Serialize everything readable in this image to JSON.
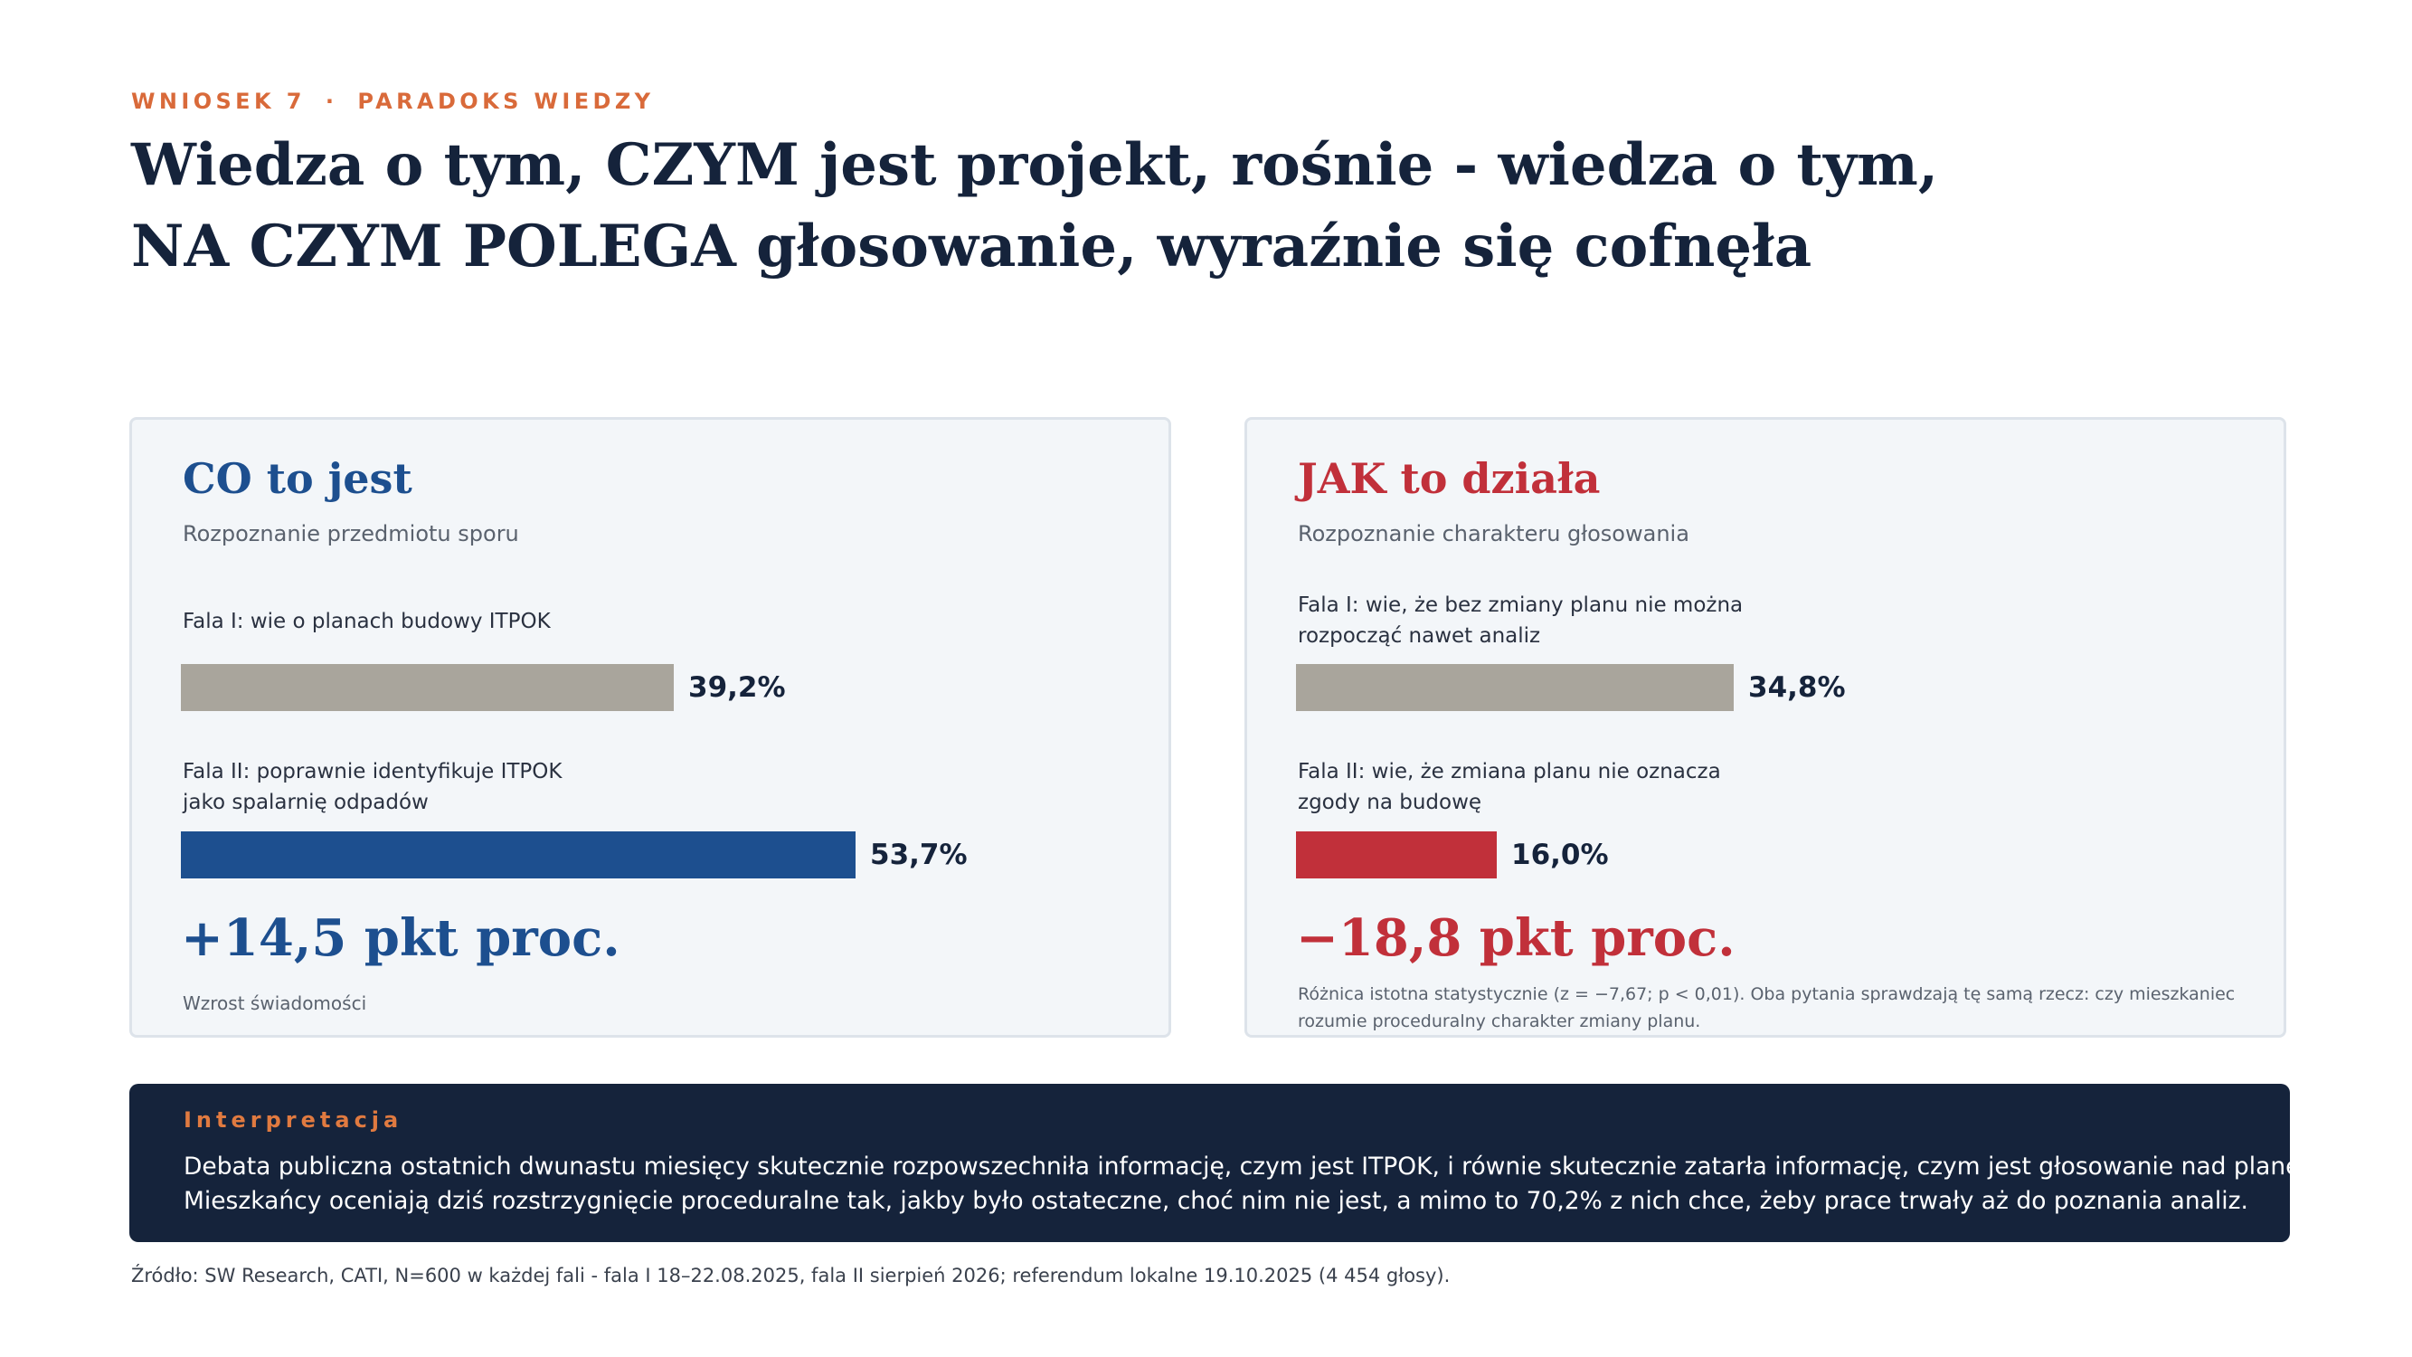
{
  "eyebrow": {
    "section": "WNIOSEK 7",
    "separator": "·",
    "topic": "PARADOKS WIEDZY"
  },
  "headline": {
    "line1": "Wiedza o tym, CZYM jest projekt, rośnie - wiedza o tym,",
    "line2": "NA CZYM POLEGA głosowanie, wyraźnie się cofnęła"
  },
  "chart_data": [
    {
      "type": "bar",
      "orientation": "horizontal",
      "title": "CO to jest",
      "subtitle": "Rozpoznanie przedmiotu sporu",
      "unit": "%",
      "xlim": [
        0,
        100
      ],
      "bars": [
        {
          "label_lines": [
            "Fala I: wie o planach budowy ITPOK"
          ],
          "value": 39.2,
          "value_label": "39,2%",
          "color": "#a9a59c"
        },
        {
          "label_lines": [
            "Fala II: poprawnie identyfikuje ITPOK",
            "jako spalarnię odpadów"
          ],
          "value": 53.7,
          "value_label": "53,7%",
          "color": "#1d4f8f"
        }
      ],
      "delta": "+14,5 pkt proc.",
      "delta_note": "Wzrost świadomości"
    },
    {
      "type": "bar",
      "orientation": "horizontal",
      "title": "JAK to działa",
      "subtitle": "Rozpoznanie charakteru głosowania",
      "unit": "%",
      "xlim": [
        0,
        100
      ],
      "bars": [
        {
          "label_lines": [
            "Fala I: wie, że bez zmiany planu nie można",
            "rozpocząć nawet analiz"
          ],
          "value": 34.8,
          "value_label": "34,8%",
          "color": "#a9a59c"
        },
        {
          "label_lines": [
            "Fala II: wie, że zmiana planu nie oznacza",
            "zgody na budowę"
          ],
          "value": 16.0,
          "value_label": "16,0%",
          "color": "#c1303a"
        }
      ],
      "delta": "−18,8 pkt proc.",
      "delta_note_lines": [
        "Różnica istotna statystycznie (z = −7,67; p < 0,01). Oba pytania sprawdzają tę samą rzecz: czy mieszkaniec",
        "rozumie proceduralny charakter zmiany planu."
      ]
    }
  ],
  "interpretation": {
    "label": "Interpretacja",
    "lines": [
      "Debata publiczna ostatnich dwunastu miesięcy skutecznie rozpowszechniła informację, czym jest ITPOK, i równie skutecznie zatarła informację, czym jest głosowanie nad planem miejscowym.",
      "Mieszkańcy oceniają dziś rozstrzygnięcie proceduralne tak, jakby było ostateczne, choć nim nie jest, a mimo to 70,2% z nich chce, żeby prace trwały aż do poznania analiz."
    ]
  },
  "source": "Źródło: SW Research, CATI, N=600 w każdej fali - fala I 18–22.08.2025, fala II sierpień 2026; referendum lokalne 19.10.2025 (4 454 głosy)."
}
